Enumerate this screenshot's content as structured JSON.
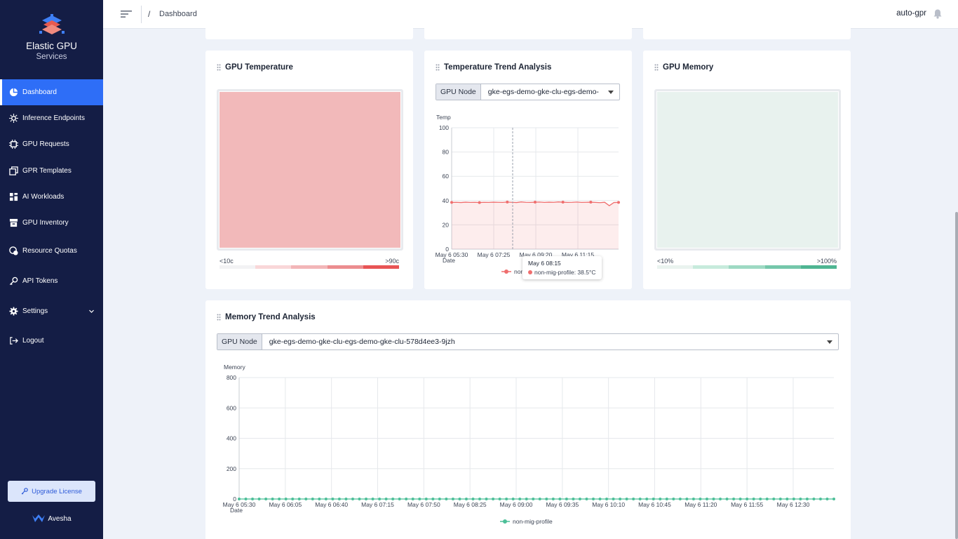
{
  "brand": {
    "title": "Elastic GPU",
    "subtitle": "Services"
  },
  "nav": [
    {
      "label": "Dashboard",
      "icon": "dashboard-icon",
      "active": true
    },
    {
      "label": "Inference Endpoints",
      "icon": "endpoint-icon"
    },
    {
      "label": "GPU Requests",
      "icon": "chip-icon"
    },
    {
      "label": "GPR Templates",
      "icon": "templates-icon"
    },
    {
      "label": "AI Workloads",
      "icon": "workloads-icon"
    },
    {
      "label": "GPU Inventory",
      "icon": "inventory-icon"
    },
    {
      "label": "Resource Quotas",
      "icon": "quotas-icon"
    },
    {
      "label": "API Tokens",
      "icon": "key-icon"
    },
    {
      "label": "Settings",
      "icon": "gear-icon"
    },
    {
      "label": "Logout",
      "icon": "logout-icon"
    }
  ],
  "upgrade_label": "Upgrade License",
  "footer_brand": "Avesha",
  "header": {
    "breadcrumb_sep": "/",
    "breadcrumb": "Dashboard",
    "user": "auto-gpr"
  },
  "gpu_temperature": {
    "title": "GPU Temperature",
    "legend_min": "<10c",
    "legend_max": ">90c",
    "colors": [
      "#f2f2f4",
      "#f9d7d8",
      "#f2b6b8",
      "#ec8d8f",
      "#e85455"
    ]
  },
  "temp_trend": {
    "title": "Temperature Trend Analysis",
    "select_label": "GPU Node",
    "select_value": "gke-egs-demo-gke-clu-egs-demo-",
    "tooltip_time": "May 6 08:15",
    "tooltip_value": "non-mig-profile: 38.5°C",
    "legend_partial": "non"
  },
  "gpu_memory": {
    "title": "GPU Memory",
    "legend_min": "<10%",
    "legend_max": ">100%",
    "colors": [
      "#eaf3ef",
      "#c7ebdc",
      "#9ed9c3",
      "#75c7aa",
      "#4fb592"
    ]
  },
  "memory_trend": {
    "title": "Memory Trend Analysis",
    "select_label": "GPU Node",
    "select_value": "gke-egs-demo-gke-clu-egs-demo-gke-clu-578d4ee3-9jzh",
    "legend": "non-mig-profile"
  },
  "chart_data": [
    {
      "type": "line",
      "title": "Temperature Trend Analysis",
      "ylabel": "Temp",
      "xlabel": "Date",
      "ylim": [
        0,
        100
      ],
      "yticks": [
        0,
        20,
        40,
        60,
        80,
        100
      ],
      "xticks": [
        "May 6 05:30",
        "May 6 07:25",
        "May 6 09:20",
        "May 6 11:15"
      ],
      "series": [
        {
          "name": "non-mig-profile",
          "color": "#ef6e6e",
          "values": [
            38.5,
            38.6,
            38.4,
            38.7,
            38.5,
            38.6,
            38.4,
            38.6,
            38.5,
            38.7,
            38.6,
            38.5,
            38.8,
            38.6,
            38.4,
            38.9,
            38.6,
            38.5,
            38.7,
            38.8,
            38.5,
            38.7,
            38.6,
            38.9,
            38.7,
            38.5,
            38.6,
            38.8,
            38.5,
            38.6,
            38.7,
            38.5,
            38.3,
            38.6,
            35.8,
            38.4,
            38.5
          ]
        }
      ],
      "grid": true
    },
    {
      "type": "line",
      "title": "Memory Trend Analysis",
      "ylabel": "Memory",
      "xlabel": "Date",
      "ylim": [
        0,
        800
      ],
      "yticks": [
        0,
        200,
        400,
        600,
        800
      ],
      "xticks": [
        "May 6 05:30",
        "May 6 06:05",
        "May 6 06:40",
        "May 6 07:15",
        "May 6 07:50",
        "May 6 08:25",
        "May 6 09:00",
        "May 6 09:35",
        "May 6 10:10",
        "May 6 10:45",
        "May 6 11:20",
        "May 6 11:55",
        "May 6 12:30"
      ],
      "series": [
        {
          "name": "non-mig-profile",
          "color": "#4cbf98",
          "values": [
            0,
            0,
            0,
            0,
            0,
            0,
            0,
            0,
            0,
            0,
            0,
            0,
            0,
            0,
            0,
            0,
            0,
            0,
            0,
            0,
            0,
            0,
            0,
            0,
            0,
            0,
            0,
            0,
            0,
            0,
            0,
            0,
            0,
            0,
            0,
            0,
            0,
            0,
            0,
            0,
            0,
            0,
            0,
            0,
            0,
            0,
            0,
            0,
            0,
            0,
            0,
            0,
            0,
            0,
            0,
            0,
            0,
            0,
            0,
            0,
            0,
            0,
            0,
            0,
            0,
            0,
            0,
            0,
            0,
            0,
            0,
            0,
            0,
            0,
            0,
            0,
            0,
            0,
            0,
            0,
            0,
            0,
            0,
            0,
            0,
            0,
            0,
            0,
            0,
            0
          ]
        }
      ],
      "grid": true
    }
  ]
}
